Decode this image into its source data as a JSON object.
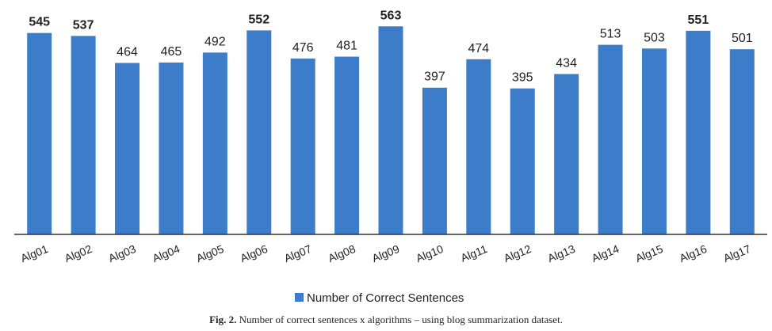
{
  "chart_data": {
    "type": "bar",
    "categories": [
      "Alg01",
      "Alg02",
      "Alg03",
      "Alg04",
      "Alg05",
      "Alg06",
      "Alg07",
      "Alg08",
      "Alg09",
      "Alg10",
      "Alg11",
      "Alg12",
      "Alg13",
      "Alg14",
      "Alg15",
      "Alg16",
      "Alg17"
    ],
    "series": [
      {
        "name": "Number of Correct Sentences",
        "values": [
          545,
          537,
          464,
          465,
          492,
          552,
          476,
          481,
          563,
          397,
          474,
          395,
          434,
          513,
          503,
          551,
          501
        ],
        "color": "#3d7cc9"
      }
    ],
    "bold_values": [
      545,
      537,
      552,
      563,
      551
    ],
    "ylim": [
      0,
      600
    ],
    "grid": false,
    "legend_position": "bottom",
    "title": "",
    "xlabel": "",
    "ylabel": ""
  },
  "caption": {
    "figure_label": "Fig. 2.",
    "text": "Number of correct sentences x algorithms – using blog summarization dataset."
  }
}
